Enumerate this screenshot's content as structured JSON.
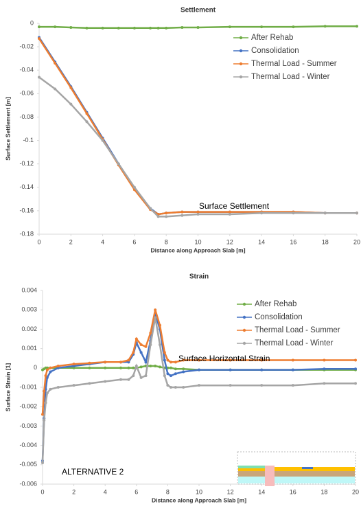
{
  "chart_data": [
    {
      "type": "line",
      "title": "Settlement",
      "xlabel": "Distance along Approach Slab [m]",
      "ylabel": "Surface Settlement [m]",
      "annotations": [
        "Surface Settlement"
      ],
      "x": [
        0,
        1,
        2,
        3,
        4,
        5,
        6,
        7,
        7.5,
        8,
        9,
        10,
        12,
        14,
        16,
        18,
        20
      ],
      "series": [
        {
          "name": "After Rehab",
          "color": "#70ad47",
          "values": [
            -0.003,
            -0.003,
            -0.0035,
            -0.004,
            -0.004,
            -0.004,
            -0.004,
            -0.004,
            -0.004,
            -0.004,
            -0.0035,
            -0.0035,
            -0.003,
            -0.003,
            -0.003,
            -0.0025,
            -0.0025
          ]
        },
        {
          "name": "Consolidation",
          "color": "#4472c4",
          "values": [
            -0.012,
            -0.033,
            -0.054,
            -0.076,
            -0.098,
            -0.12,
            -0.141,
            -0.158,
            -0.163,
            -0.162,
            -0.161,
            -0.161,
            -0.161,
            -0.161,
            -0.161,
            -0.162,
            -0.162
          ]
        },
        {
          "name": "Thermal Load - Summer",
          "color": "#ed7d31",
          "values": [
            -0.013,
            -0.034,
            -0.055,
            -0.077,
            -0.099,
            -0.121,
            -0.142,
            -0.159,
            -0.163,
            -0.162,
            -0.161,
            -0.161,
            -0.161,
            -0.161,
            -0.161,
            -0.162,
            -0.162
          ]
        },
        {
          "name": "Thermal Load - Winter",
          "color": "#a5a5a5",
          "values": [
            -0.046,
            -0.056,
            -0.069,
            -0.084,
            -0.1,
            -0.12,
            -0.14,
            -0.158,
            -0.165,
            -0.165,
            -0.164,
            -0.163,
            -0.163,
            -0.162,
            -0.162,
            -0.162,
            -0.162
          ]
        }
      ],
      "xlim": [
        0,
        20
      ],
      "xticks": [
        0,
        2,
        4,
        6,
        8,
        10,
        12,
        14,
        16,
        18,
        20
      ],
      "ylim": [
        -0.18,
        0
      ],
      "yticks": [
        -0.18,
        -0.16,
        -0.14,
        -0.12,
        -0.1,
        -0.08,
        -0.06,
        -0.04,
        -0.02,
        0
      ],
      "legend": "upper right"
    },
    {
      "type": "line",
      "title": "Strain",
      "xlabel": "Distance along Approach Slab [m]",
      "ylabel": "Surface Strain [1]",
      "annotations": [
        "Surface Horizontal Strain",
        "ALTERNATIVE 2"
      ],
      "x": [
        0,
        0.1,
        0.2,
        0.3,
        0.5,
        1,
        2,
        3,
        4,
        5,
        5.5,
        5.8,
        6,
        6.3,
        6.6,
        6.9,
        7.2,
        7.5,
        7.8,
        8,
        8.2,
        8.5,
        9,
        10,
        12,
        14,
        16,
        18,
        20
      ],
      "series": [
        {
          "name": "After Rehab",
          "color": "#70ad47",
          "values": [
            -0.0001,
            -5e-05,
            0,
            0,
            0,
            0,
            0,
            0,
            0,
            0,
            0,
            0,
            0,
            5e-05,
            0.0001,
            0.0001,
            0.0001,
            5e-05,
            0,
            0,
            0,
            -5e-05,
            -5e-05,
            -0.0001,
            -0.0001,
            -0.0001,
            -0.0001,
            -0.0001,
            -0.0001
          ]
        },
        {
          "name": "Consolidation",
          "color": "#4472c4",
          "values": [
            -0.0048,
            -0.0026,
            -0.0011,
            -0.0005,
            -0.0002,
            0,
            0.0001,
            0.0002,
            0.0003,
            0.0003,
            0.0003,
            0.0007,
            0.0013,
            0.0008,
            0.0003,
            0.0014,
            0.0028,
            0.002,
            0.0004,
            -0.0003,
            -0.0004,
            -0.0003,
            -0.0002,
            -0.0001,
            -0.0001,
            -0.0001,
            -0.0001,
            -5e-05,
            -5e-05
          ]
        },
        {
          "name": "Thermal Load - Summer",
          "color": "#ed7d31",
          "values": [
            -0.0024,
            -0.0012,
            -0.0004,
            -0.0001,
            0,
            0.0001,
            0.0002,
            0.00025,
            0.0003,
            0.0003,
            0.0004,
            0.0008,
            0.0015,
            0.0012,
            0.0011,
            0.0018,
            0.003,
            0.0022,
            0.0008,
            0.0004,
            0.0003,
            0.0003,
            0.0004,
            0.0004,
            0.0004,
            0.0004,
            0.0004,
            0.0004,
            0.0004
          ]
        },
        {
          "name": "Thermal Load - Winter",
          "color": "#a5a5a5",
          "values": [
            -0.0049,
            -0.0027,
            -0.0018,
            -0.0013,
            -0.0011,
            -0.001,
            -0.0009,
            -0.0008,
            -0.0007,
            -0.0006,
            -0.0006,
            -0.0004,
            0.0001,
            -0.0005,
            -0.0004,
            0.0012,
            0.0026,
            0.0012,
            -0.0004,
            -0.0009,
            -0.001,
            -0.001,
            -0.001,
            -0.0009,
            -0.0009,
            -0.0009,
            -0.0009,
            -0.0008,
            -0.0008
          ]
        }
      ],
      "xlim": [
        0,
        20
      ],
      "xticks": [
        0,
        2,
        4,
        6,
        8,
        10,
        12,
        14,
        16,
        18,
        20
      ],
      "ylim": [
        -0.006,
        0.004
      ],
      "yticks": [
        -0.006,
        -0.005,
        -0.004,
        -0.003,
        -0.002,
        -0.001,
        0,
        0.001,
        0.002,
        0.003,
        0.004
      ],
      "legend": "upper right"
    }
  ]
}
